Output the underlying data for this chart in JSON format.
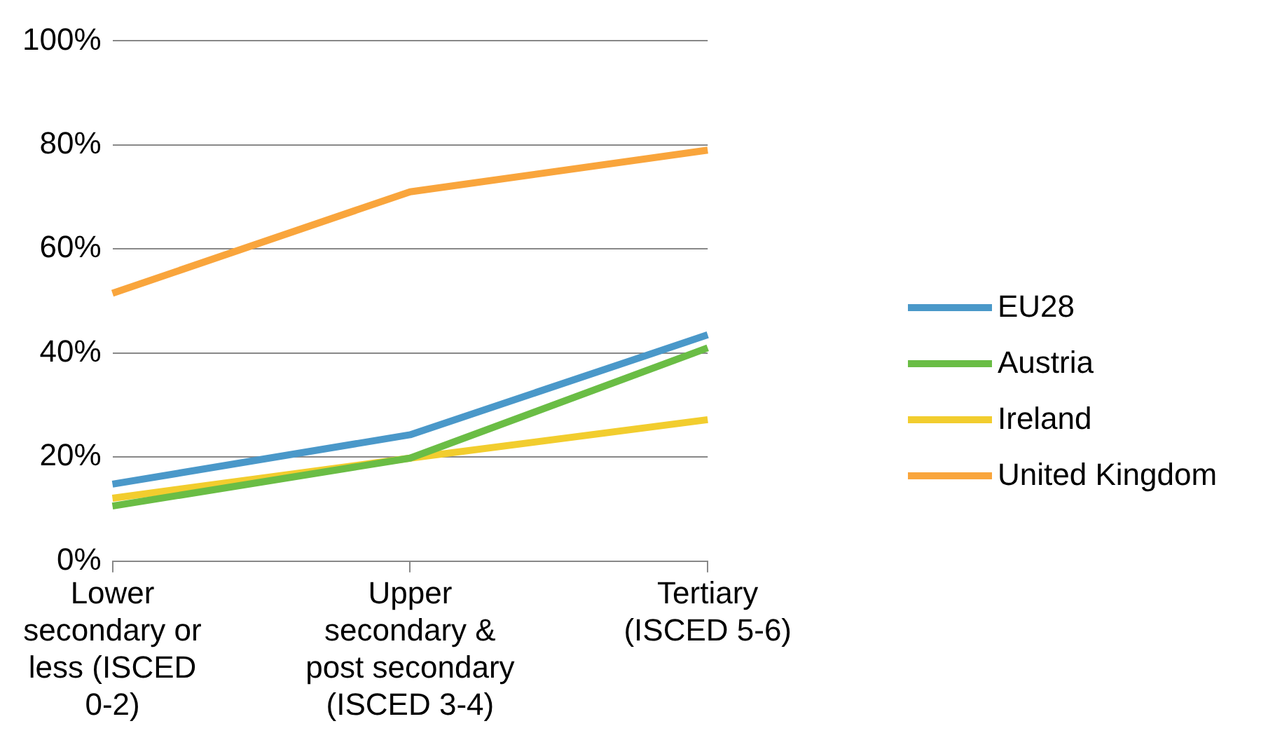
{
  "chart_data": {
    "type": "line",
    "categories": [
      "Lower secondary or less (ISCED 0-2)",
      "Upper secondary & post secondary (ISCED 3-4)",
      "Tertiary (ISCED 5-6)"
    ],
    "series": [
      {
        "name": "EU28",
        "color": "#4a98c9",
        "values": [
          14.8,
          24.3,
          43.5
        ]
      },
      {
        "name": "Austria",
        "color": "#6abd45",
        "values": [
          10.6,
          19.8,
          41
        ]
      },
      {
        "name": "Ireland",
        "color": "#f2cd2e",
        "values": [
          12.1,
          19.8,
          27.2
        ]
      },
      {
        "name": "United Kingdom",
        "color": "#f9a53c",
        "values": [
          51.5,
          71,
          79
        ]
      }
    ],
    "ylim": [
      0,
      100
    ],
    "yticks": [
      {
        "value": 0,
        "label": "0%"
      },
      {
        "value": 20,
        "label": "20%"
      },
      {
        "value": 40,
        "label": "40%"
      },
      {
        "value": 60,
        "label": "60%"
      },
      {
        "value": 80,
        "label": "80%"
      },
      {
        "value": 100,
        "label": "100%"
      }
    ],
    "grid": "y",
    "legend": "right",
    "marker": "none",
    "line_style": "solid"
  }
}
